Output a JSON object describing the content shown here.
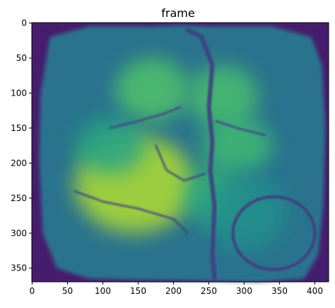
{
  "chart_data": {
    "type": "heatmap",
    "title": "frame",
    "xlabel": "",
    "ylabel": "",
    "image_width": 420,
    "image_height": 370,
    "xlim": [
      -0.5,
      419.5
    ],
    "ylim": [
      369.5,
      -0.5
    ],
    "x_ticks": [
      0,
      50,
      100,
      150,
      200,
      250,
      300,
      350,
      400
    ],
    "y_ticks": [
      0,
      50,
      100,
      150,
      200,
      250,
      300,
      350
    ],
    "colormap": "viridis",
    "colormap_stops": [
      "#440154",
      "#472d7b",
      "#3b528b",
      "#2c728e",
      "#21918c",
      "#28ae80",
      "#5ec962",
      "#addc30",
      "#fde725"
    ],
    "background_value": 0.08,
    "brain_outline": [
      [
        25,
        20
      ],
      [
        80,
        5
      ],
      [
        160,
        5
      ],
      [
        210,
        3
      ],
      [
        260,
        5
      ],
      [
        340,
        5
      ],
      [
        395,
        20
      ],
      [
        410,
        60
      ],
      [
        415,
        150
      ],
      [
        412,
        260
      ],
      [
        405,
        330
      ],
      [
        385,
        365
      ],
      [
        320,
        370
      ],
      [
        240,
        368
      ],
      [
        160,
        367
      ],
      [
        80,
        365
      ],
      [
        35,
        350
      ],
      [
        15,
        300
      ],
      [
        10,
        200
      ],
      [
        12,
        100
      ]
    ],
    "brain_base_value": 0.38,
    "bright_regions": [
      {
        "x": 170,
        "y": 95,
        "rx": 52,
        "ry": 45,
        "value": 0.34
      },
      {
        "x": 270,
        "y": 105,
        "rx": 50,
        "ry": 45,
        "value": 0.32
      },
      {
        "x": 145,
        "y": 230,
        "rx": 85,
        "ry": 70,
        "value": 0.5
      },
      {
        "x": 290,
        "y": 175,
        "rx": 50,
        "ry": 40,
        "value": 0.3
      },
      {
        "x": 255,
        "y": 245,
        "rx": 40,
        "ry": 40,
        "value": 0.28
      },
      {
        "x": 110,
        "y": 175,
        "rx": 50,
        "ry": 40,
        "value": 0.2
      },
      {
        "x": 300,
        "y": 270,
        "rx": 60,
        "ry": 55,
        "value": 0.12
      }
    ],
    "dark_features": [
      {
        "kind": "midline",
        "points": [
          [
            220,
            10
          ],
          [
            240,
            20
          ],
          [
            255,
            60
          ],
          [
            250,
            120
          ],
          [
            255,
            170
          ],
          [
            252,
            210
          ],
          [
            258,
            260
          ],
          [
            255,
            330
          ],
          [
            258,
            365
          ]
        ]
      },
      {
        "kind": "vessel",
        "points": [
          [
            175,
            175
          ],
          [
            190,
            210
          ],
          [
            215,
            225
          ],
          [
            245,
            215
          ]
        ]
      },
      {
        "kind": "vessel",
        "points": [
          [
            60,
            240
          ],
          [
            100,
            255
          ],
          [
            150,
            265
          ],
          [
            200,
            280
          ],
          [
            220,
            300
          ]
        ]
      },
      {
        "kind": "vessel",
        "points": [
          [
            210,
            120
          ],
          [
            185,
            130
          ],
          [
            150,
            140
          ],
          [
            110,
            150
          ]
        ]
      },
      {
        "kind": "vessel",
        "points": [
          [
            260,
            140
          ],
          [
            290,
            150
          ],
          [
            330,
            160
          ]
        ]
      },
      {
        "kind": "ring",
        "x": 342,
        "y": 300,
        "rx": 58,
        "ry": 52
      }
    ]
  }
}
